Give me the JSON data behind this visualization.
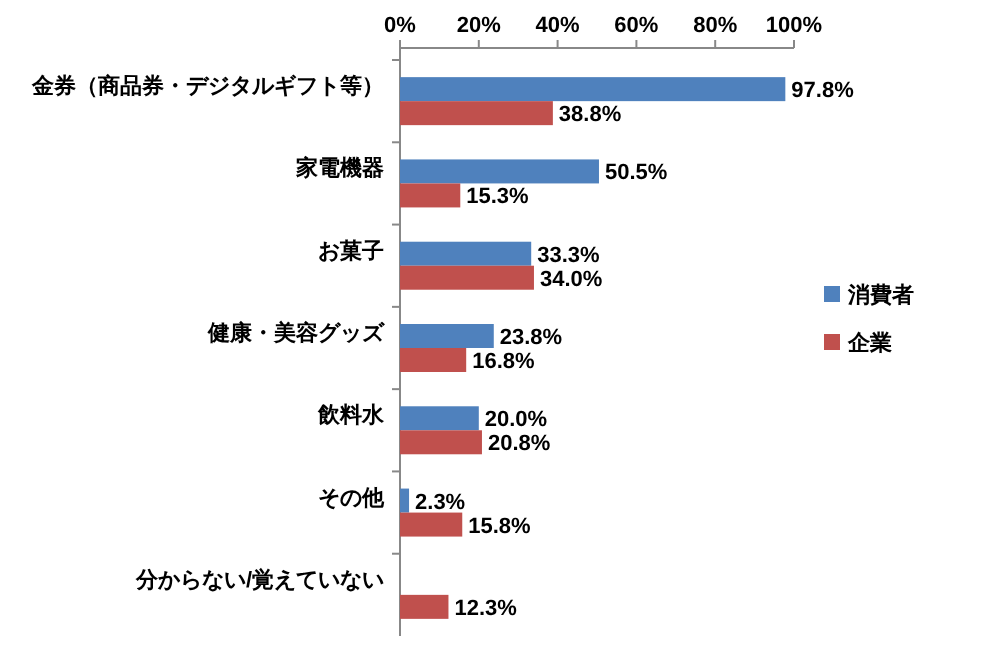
{
  "chart_data": {
    "type": "bar",
    "orientation": "horizontal",
    "categories": [
      "金券（商品券・デジタルギフト等）",
      "家電機器",
      "お菓子",
      "健康・美容グッズ",
      "飲料水",
      "その他",
      "分からない/覚えていない"
    ],
    "series": [
      {
        "name": "消費者",
        "color": "#4f81bd",
        "values": [
          97.8,
          50.5,
          33.3,
          23.8,
          20.0,
          2.3,
          null
        ],
        "value_labels": [
          "97.8%",
          "50.5%",
          "33.3%",
          "23.8%",
          "20.0%",
          "2.3%",
          null
        ]
      },
      {
        "name": "企業",
        "color": "#c0504d",
        "values": [
          38.8,
          15.3,
          34.0,
          16.8,
          20.8,
          15.8,
          12.3
        ],
        "value_labels": [
          "38.8%",
          "15.3%",
          "34.0%",
          "16.8%",
          "20.8%",
          "15.8%",
          "12.3%"
        ]
      }
    ],
    "xlim": [
      0,
      100
    ],
    "xticks": [
      {
        "value": 0,
        "label": "0%"
      },
      {
        "value": 20,
        "label": "20%"
      },
      {
        "value": 40,
        "label": "40%"
      },
      {
        "value": 60,
        "label": "60%"
      },
      {
        "value": 80,
        "label": "80%"
      },
      {
        "value": 100,
        "label": "100%"
      }
    ],
    "legend": "right"
  }
}
